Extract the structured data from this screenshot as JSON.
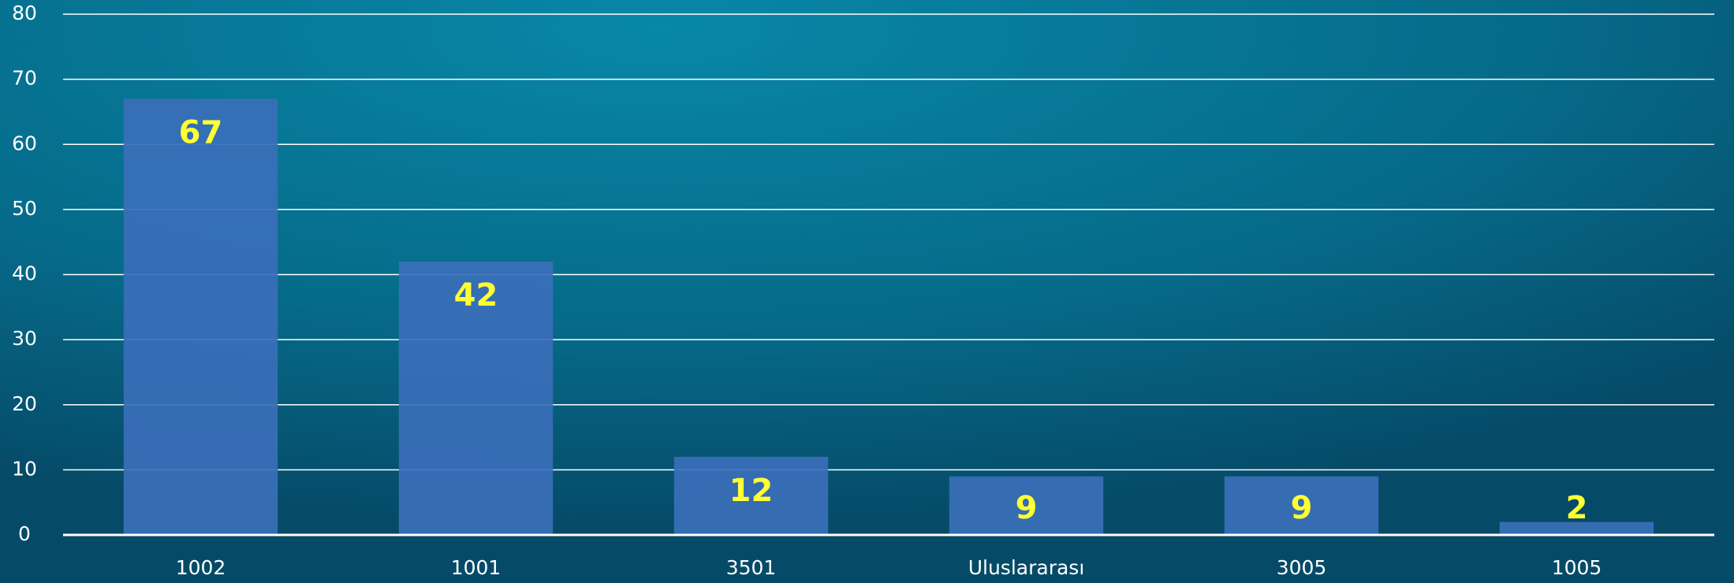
{
  "chart_data": {
    "type": "bar",
    "categories": [
      "1002",
      "1001",
      "3501",
      "Uluslararası",
      "3005",
      "1005"
    ],
    "values": [
      67,
      42,
      12,
      9,
      9,
      2
    ],
    "color": "#3a6fb8",
    "label_color": "#ffff33",
    "ylim": [
      0,
      80
    ],
    "yticks": [
      0,
      10,
      20,
      30,
      40,
      50,
      60,
      70,
      80
    ],
    "grid": true
  }
}
